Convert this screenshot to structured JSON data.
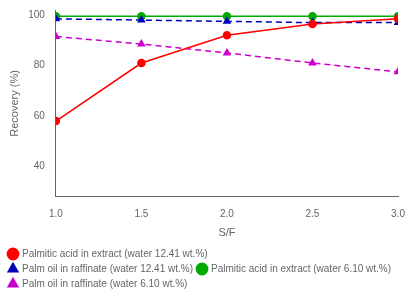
{
  "chart_data": {
    "type": "line",
    "xlabel": "S/F",
    "ylabel": "Recovery (%)",
    "x": [
      1.0,
      1.5,
      2.0,
      2.5,
      3.0
    ],
    "series": [
      {
        "name": "Palmitic acid in extract (water 12.41 wt.%)",
        "color": "#ff0000",
        "marker": "circle",
        "line_style": "solid",
        "values": [
          58,
          81,
          92,
          96.5,
          98.5
        ]
      },
      {
        "name": "Palm oil in raffinate (water 12.41 wt.%)",
        "color": "#0000bb",
        "marker": "triangle",
        "line_style": "dashed",
        "values": [
          98.5,
          98.0,
          97.5,
          97.0,
          97.0
        ]
      },
      {
        "name": "Palmitic acid in extract (water 6.10 wt.%)",
        "color": "#00aa00",
        "marker": "circle",
        "line_style": "solid",
        "values": [
          99.5,
          99.5,
          99.5,
          99.5,
          99.5
        ]
      },
      {
        "name": "Palm oil in raffinate (water 6.10 wt.%)",
        "color": "#cc00cc",
        "marker": "triangle",
        "line_style": "dashed",
        "values": [
          91.5,
          88.5,
          85.0,
          81.0,
          77.5
        ]
      }
    ],
    "xlim": [
      1.0,
      3.0
    ],
    "ylim": [
      28,
      102
    ],
    "xticks": [
      {
        "value": 1.0,
        "label": "1.0"
      },
      {
        "value": 1.5,
        "label": "1.5"
      },
      {
        "value": 2.0,
        "label": "2.0"
      },
      {
        "value": 2.5,
        "label": "2.5"
      },
      {
        "value": 3.0,
        "label": "3.0"
      }
    ],
    "yticks": [
      40,
      60,
      80,
      100
    ],
    "grid": false,
    "legend": "lower left"
  }
}
